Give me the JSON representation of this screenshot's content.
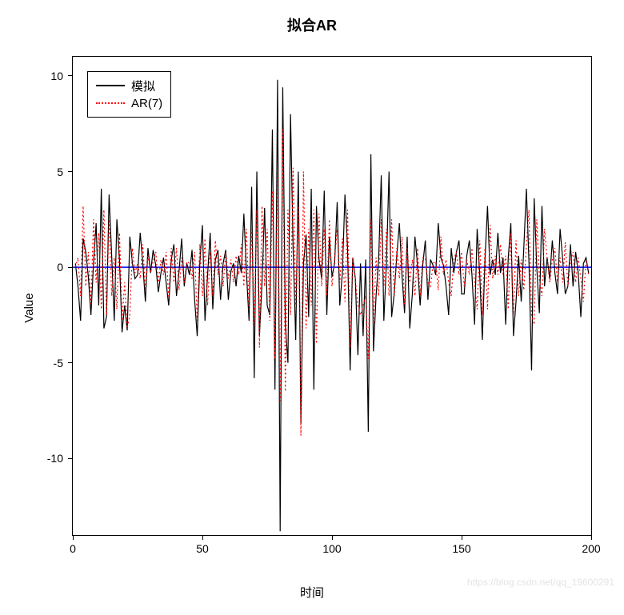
{
  "chart": {
    "type": "line",
    "title": "拟合AR",
    "title_fontsize": 18,
    "xlabel": "时间",
    "ylabel": "Value",
    "label_fontsize": 15,
    "tick_fontsize": 14,
    "background_color": "#ffffff",
    "border_color": "#000000",
    "xlim": [
      0,
      200
    ],
    "ylim": [
      -14,
      11
    ],
    "xticks": [
      0,
      50,
      100,
      150,
      200
    ],
    "yticks": [
      -10,
      -5,
      0,
      5,
      10
    ],
    "zero_line_color": "#0000ff",
    "zero_line_width": 1.5,
    "legend": {
      "position": "top-left",
      "border_color": "#000000",
      "items": [
        {
          "label": "模拟",
          "color": "#000000",
          "style": "solid",
          "width": 1.5
        },
        {
          "label": "AR(7)",
          "color": "#ff0000",
          "style": "dotted",
          "width": 1.5
        }
      ]
    },
    "series": [
      {
        "name": "模拟",
        "color": "#000000",
        "style": "solid",
        "width": 1.2,
        "x_start": 1,
        "x_step": 1,
        "y": [
          0.2,
          -1.0,
          -2.8,
          1.5,
          0.8,
          -0.5,
          -2.5,
          0.2,
          2.3,
          -2.0,
          4.1,
          -3.2,
          -2.6,
          3.8,
          0.6,
          -2.8,
          2.5,
          0.4,
          -3.4,
          -2.0,
          -3.3,
          1.6,
          0.2,
          -0.6,
          -0.4,
          1.8,
          0.2,
          -1.8,
          1.0,
          -0.3,
          0.9,
          0.1,
          -1.3,
          -0.3,
          0.5,
          -0.8,
          -2.0,
          0.4,
          1.2,
          -1.5,
          -0.2,
          1.5,
          -1.0,
          0.2,
          -0.4,
          0.9,
          -1.7,
          -3.6,
          0.2,
          2.2,
          -2.8,
          -0.4,
          1.8,
          -2.2,
          0.4,
          0.9,
          -1.7,
          0.2,
          0.9,
          -1.7,
          -0.2,
          0.2,
          -1.0,
          0.6,
          -0.3,
          2.8,
          -0.3,
          -2.8,
          4.2,
          -5.8,
          5.0,
          -3.6,
          -0.8,
          3.1,
          -2.0,
          -2.5,
          7.2,
          -6.4,
          9.8,
          -13.8,
          9.4,
          -3.0,
          -5.0,
          8.0,
          1.0,
          -3.8,
          5.0,
          -8.2,
          0.2,
          1.7,
          -2.6,
          4.1,
          -6.4,
          3.2,
          0.4,
          -0.6,
          4.0,
          -2.5,
          1.6,
          -0.5,
          0.2,
          3.4,
          -2.0,
          -0.3,
          3.8,
          1.0,
          -5.4,
          0.5,
          -0.6,
          -4.6,
          0.2,
          -3.6,
          0.4,
          -8.6,
          5.9,
          -4.4,
          -1.5,
          0.4,
          4.8,
          -2.8,
          0.2,
          5.0,
          -2.6,
          -1.4,
          0.6,
          2.3,
          -0.4,
          -2.4,
          1.6,
          -3.2,
          -1.4,
          1.6,
          0.1,
          -2.0,
          0.1,
          1.4,
          -1.7,
          0.4,
          0.1,
          -0.4,
          2.3,
          0.5,
          0.1,
          -1.0,
          -2.5,
          1.0,
          -0.3,
          0.8,
          1.4,
          -1.4,
          -1.4,
          0.6,
          1.4,
          -0.4,
          -3.0,
          2.0,
          -0.4,
          -3.8,
          0.3,
          3.2,
          -0.4,
          0.4,
          -0.4,
          1.8,
          -0.3,
          0.5,
          -3.0,
          0.5,
          2.3,
          -3.6,
          -1.8,
          0.6,
          -1.8,
          1.0,
          4.1,
          0.2,
          -5.4,
          3.6,
          0.0,
          -2.4,
          3.2,
          -1.0,
          0.5,
          -0.6,
          1.4,
          -0.3,
          -1.4,
          2.0,
          0.4,
          -1.4,
          -1.0,
          1.2,
          -1.0,
          0.8,
          -0.3,
          -2.6,
          0.2,
          0.5,
          -0.3
        ]
      },
      {
        "name": "AR(7)",
        "color": "#ff0000",
        "style": "dotted",
        "width": 1.2,
        "x_start": 1,
        "x_step": 1,
        "y": [
          0.0,
          0.5,
          -1.5,
          3.2,
          -1.0,
          0.8,
          -2.0,
          2.5,
          -0.8,
          1.8,
          -2.2,
          3.0,
          -2.5,
          2.5,
          -1.5,
          0.5,
          -2.2,
          1.8,
          -2.8,
          -0.8,
          -3.2,
          -2.5,
          1.0,
          -0.3,
          0.2,
          -0.6,
          1.2,
          -1.2,
          0.6,
          -0.3,
          0.3,
          0.8,
          -0.8,
          0.4,
          -0.4,
          0.8,
          -1.6,
          1.0,
          -0.8,
          1.0,
          -1.2,
          0.5,
          -0.8,
          0.3,
          0.2,
          -0.6,
          0.8,
          -2.8,
          1.2,
          -1.5,
          1.5,
          -2.0,
          0.8,
          -1.5,
          1.4,
          -0.4,
          0.6,
          -1.0,
          0.8,
          -0.6,
          0.4,
          -0.8,
          0.6,
          -0.4,
          1.2,
          -1.0,
          2.0,
          -2.2,
          2.0,
          -3.0,
          3.0,
          -4.2,
          3.2,
          -1.0,
          2.0,
          -2.8,
          4.0,
          -4.8,
          5.0,
          -7.0,
          7.2,
          -6.5,
          3.0,
          -2.5,
          5.2,
          -2.0,
          3.2,
          -8.8,
          5.0,
          -3.2,
          2.0,
          -2.0,
          3.0,
          -4.0,
          2.8,
          -1.0,
          2.0,
          -1.5,
          2.5,
          -1.0,
          0.4,
          2.0,
          -0.8,
          1.5,
          -1.8,
          3.0,
          -4.2,
          0.5,
          -0.6,
          -2.0,
          -2.5,
          -2.0,
          -1.5,
          -4.8,
          2.5,
          -3.0,
          0.5,
          -1.5,
          2.5,
          -1.0,
          2.0,
          -1.5,
          2.5,
          -1.5,
          1.0,
          -0.6,
          1.6,
          -2.0,
          1.0,
          -0.8,
          0.4,
          -1.5,
          1.0,
          -1.5,
          0.5,
          0.5,
          -0.8,
          -1.0,
          0.2,
          0.3,
          -1.2,
          1.6,
          -0.4,
          0.4,
          -0.8,
          -1.5,
          0.4,
          0.8,
          -0.4,
          0.8,
          -1.0,
          0.4,
          -0.4,
          1.0,
          -0.8,
          -2.2,
          1.4,
          -2.5,
          1.0,
          -2.2,
          2.2,
          -0.6,
          0.6,
          -0.4,
          1.2,
          -0.4,
          0.6,
          -2.2,
          1.8,
          -2.5,
          1.4,
          -1.5,
          0.4,
          -1.2,
          1.2,
          3.0,
          -2.5,
          -3.0,
          2.5,
          -0.6,
          -1.5,
          2.0,
          0.5,
          -0.8,
          0.4,
          1.0,
          -0.8,
          0.5,
          -0.8,
          1.3,
          -1.0,
          0.3,
          0.8,
          -0.8,
          0.5,
          -0.6,
          -1.8,
          0.4,
          -0.4
        ]
      }
    ]
  },
  "watermark": "https://blog.csdn.net/qq_19600291"
}
